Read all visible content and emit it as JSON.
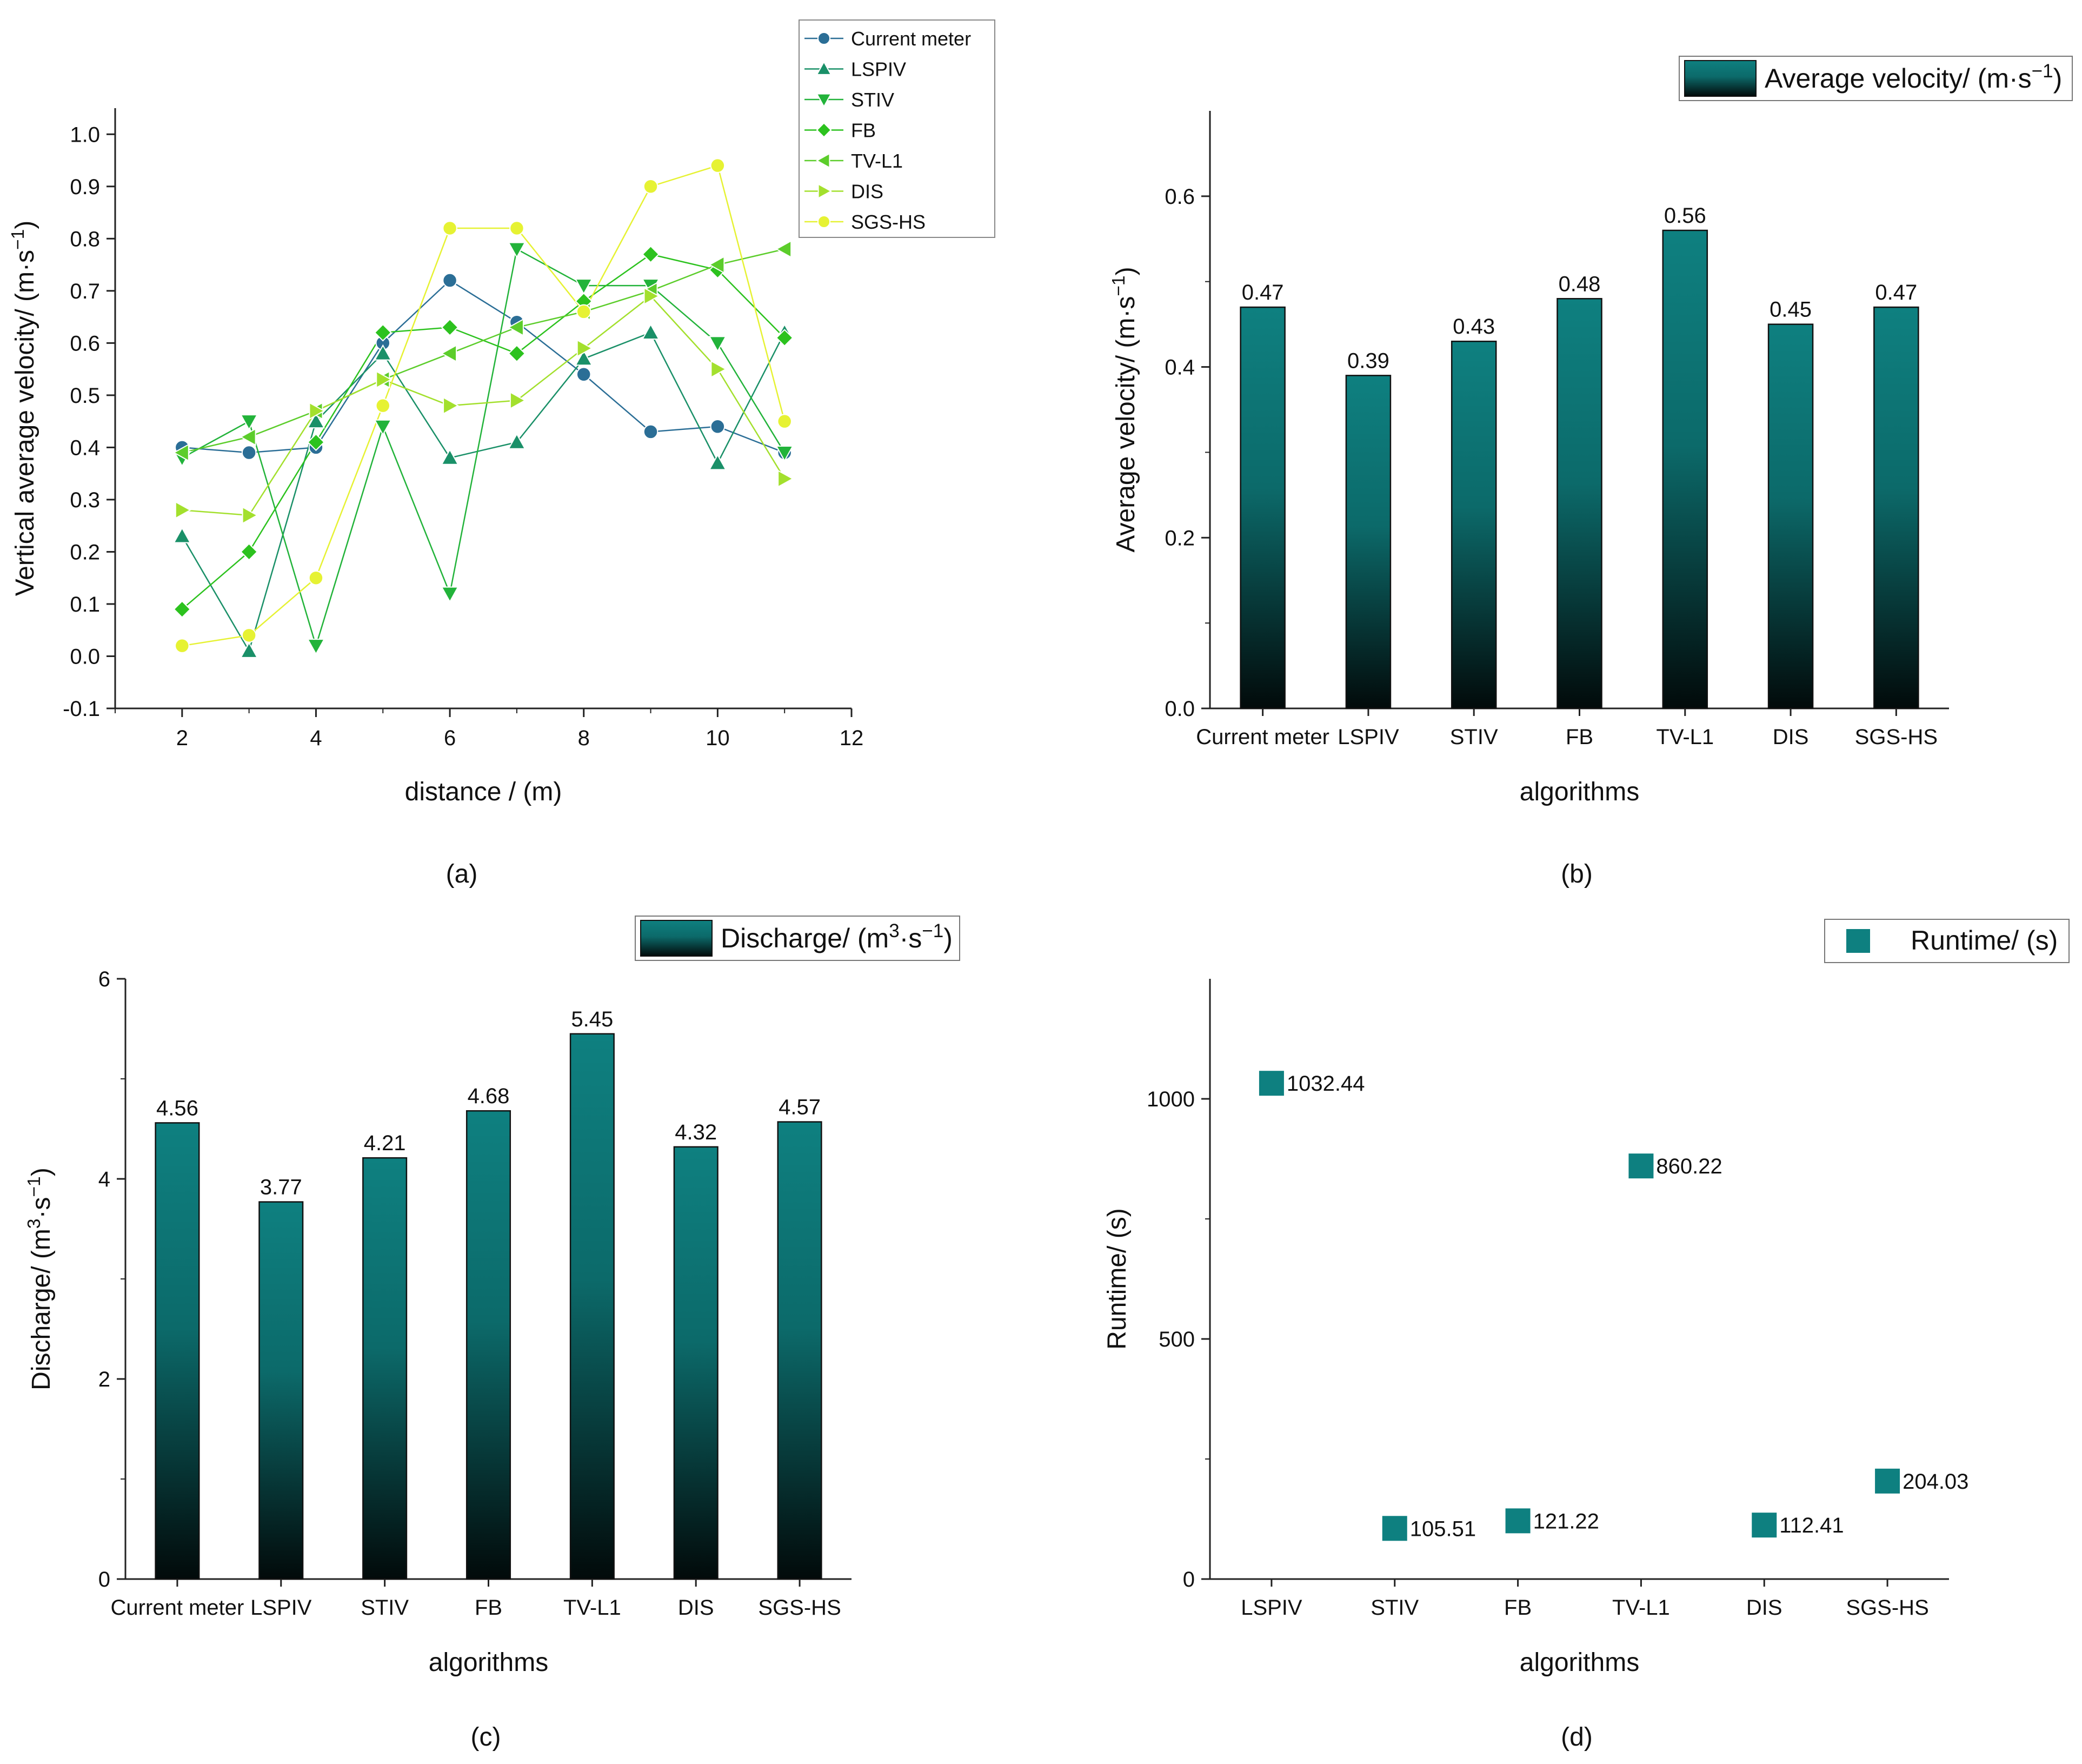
{
  "figure": {
    "panel_labels": [
      "(a)",
      "(b)",
      "(c)",
      "(d)"
    ]
  },
  "chart_data": [
    {
      "type": "line",
      "panel": "(a)",
      "xlabel": "distance / (m)",
      "ylabel": "Vertical average velocity/ (m·s⁻¹)",
      "xlim": [
        1,
        12
      ],
      "ylim": [
        -0.1,
        1.05
      ],
      "xticks": [
        2,
        4,
        6,
        8,
        10,
        12
      ],
      "yticks": [
        -0.1,
        0.0,
        0.1,
        0.2,
        0.3,
        0.4,
        0.5,
        0.6,
        0.7,
        0.8,
        0.9,
        1.0
      ],
      "legend_position": "top-right",
      "x": [
        2,
        3,
        4,
        5,
        6,
        7,
        8,
        9,
        10,
        11
      ],
      "series": [
        {
          "name": "Current meter",
          "marker": "circle",
          "color": "#2b6e96",
          "values": [
            0.4,
            0.39,
            0.4,
            0.6,
            0.72,
            0.64,
            0.54,
            0.43,
            0.44,
            0.39
          ]
        },
        {
          "name": "LSPIV",
          "marker": "triangle-up",
          "color": "#1a9068",
          "values": [
            0.23,
            0.01,
            0.45,
            0.58,
            0.38,
            0.41,
            0.57,
            0.62,
            0.37,
            0.62
          ]
        },
        {
          "name": "STIV",
          "marker": "triangle-down",
          "color": "#22b33a",
          "values": [
            0.38,
            0.45,
            0.02,
            0.44,
            0.12,
            0.78,
            0.71,
            0.71,
            0.6,
            0.39
          ]
        },
        {
          "name": "FB",
          "marker": "diamond",
          "color": "#2cc21e",
          "values": [
            0.09,
            0.2,
            0.41,
            0.62,
            0.63,
            0.58,
            0.68,
            0.77,
            0.74,
            0.61
          ]
        },
        {
          "name": "TV-L1",
          "marker": "triangle-left",
          "color": "#5ccd2b",
          "values": [
            0.39,
            0.42,
            0.47,
            0.53,
            0.58,
            0.63,
            0.66,
            0.7,
            0.75,
            0.78
          ]
        },
        {
          "name": "DIS",
          "marker": "triangle-right",
          "color": "#a3e02d",
          "values": [
            0.28,
            0.27,
            0.47,
            0.53,
            0.48,
            0.49,
            0.59,
            0.69,
            0.55,
            0.34
          ]
        },
        {
          "name": "SGS-HS",
          "marker": "circle",
          "color": "#e6f233",
          "values": [
            0.02,
            0.04,
            0.15,
            0.48,
            0.82,
            0.82,
            0.66,
            0.9,
            0.94,
            0.45
          ]
        }
      ]
    },
    {
      "type": "bar",
      "panel": "(b)",
      "categories": [
        "Current meter",
        "LSPIV",
        "STIV",
        "FB",
        "TV-L1",
        "DIS",
        "SGS-HS"
      ],
      "values": [
        0.47,
        0.39,
        0.43,
        0.48,
        0.56,
        0.45,
        0.47
      ],
      "value_labels": [
        "0.47",
        "0.39",
        "0.43",
        "0.48",
        "0.56",
        "0.45",
        "0.47"
      ],
      "xlabel": "algorithms",
      "ylabel": "Average velocity/ (m·s⁻¹)",
      "ylim": [
        0,
        0.7
      ],
      "yticks": [
        0.0,
        0.2,
        0.4,
        0.6
      ],
      "legend": "Average velocity/ (m·s⁻¹)",
      "legend_position": "top-right"
    },
    {
      "type": "bar",
      "panel": "(c)",
      "categories": [
        "Current meter",
        "LSPIV",
        "STIV",
        "FB",
        "TV-L1",
        "DIS",
        "SGS-HS"
      ],
      "values": [
        4.56,
        3.77,
        4.21,
        4.68,
        5.45,
        4.32,
        4.57
      ],
      "value_labels": [
        "4.56",
        "3.77",
        "4.21",
        "4.68",
        "5.45",
        "4.32",
        "4.57"
      ],
      "xlabel": "algorithms",
      "ylabel": "Discharge/ (m³·s⁻¹)",
      "ylim": [
        0,
        6
      ],
      "yticks": [
        0,
        2,
        4,
        6
      ],
      "legend": "Discharge/ (m³·s⁻¹)",
      "legend_position": "top-right"
    },
    {
      "type": "scatter",
      "panel": "(d)",
      "categories": [
        "LSPIV",
        "STIV",
        "FB",
        "TV-L1",
        "DIS",
        "SGS-HS"
      ],
      "values": [
        1032.44,
        105.51,
        121.22,
        860.22,
        112.41,
        204.03
      ],
      "value_labels": [
        "1032.44",
        "105.51",
        "121.22",
        "860.22",
        "112.41",
        "204.03"
      ],
      "xlabel": "algorithms",
      "ylabel": "Runtime/ (s)",
      "ylim": [
        0,
        1250
      ],
      "yticks": [
        0,
        500,
        1000
      ],
      "legend": "Runtime/ (s)",
      "legend_position": "top-right",
      "color": "#0e8080"
    }
  ]
}
